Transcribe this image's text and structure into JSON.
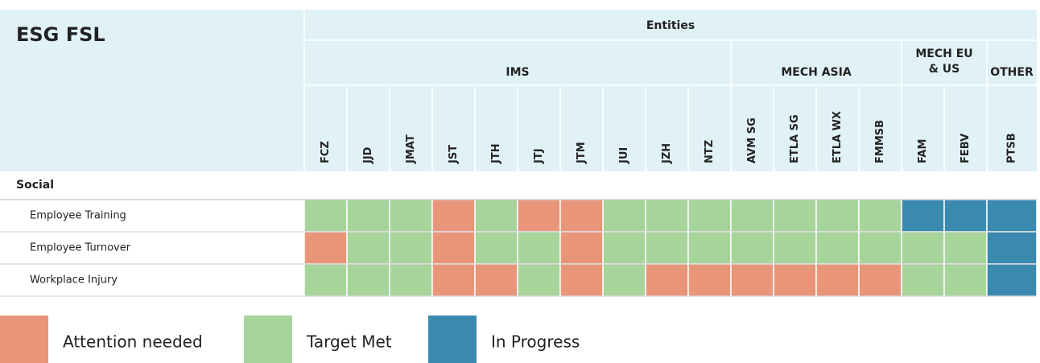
{
  "title": "ESG FSL",
  "header": "Entities",
  "groups": [
    {
      "name": "IMS",
      "columns": [
        "FCZ",
        "JJD",
        "JMAT",
        "JST",
        "JTH",
        "JTJ",
        "JTM",
        "JUI",
        "JZH",
        "NTZ"
      ]
    },
    {
      "name": "MECH ASIA",
      "columns": [
        "AVM SG",
        "ETLA SG",
        "ETLA WX",
        "FMMSB"
      ]
    },
    {
      "name": "MECH EU & US",
      "columns": [
        "FAM",
        "FEBV"
      ]
    },
    {
      "name": "OTHER",
      "columns": [
        "PTSB"
      ]
    }
  ],
  "section": "Social",
  "rows": [
    {
      "label": "Employee Training",
      "status": [
        1,
        1,
        1,
        0,
        1,
        0,
        0,
        1,
        1,
        1,
        1,
        1,
        1,
        1,
        2,
        2,
        2
      ]
    },
    {
      "label": "Employee Turnover",
      "status": [
        0,
        1,
        1,
        0,
        1,
        1,
        0,
        1,
        1,
        1,
        1,
        1,
        1,
        1,
        1,
        1,
        2
      ]
    },
    {
      "label": "Workplace Injury",
      "status": [
        1,
        1,
        1,
        0,
        0,
        1,
        0,
        1,
        0,
        0,
        0,
        0,
        0,
        0,
        1,
        1,
        2
      ]
    }
  ],
  "legend": [
    {
      "label": "Attention needed",
      "color": "#e8957a"
    },
    {
      "label": "Target Met",
      "color": "#a6d49b"
    },
    {
      "label": "In Progress",
      "color": "#3a8ab0"
    }
  ]
}
